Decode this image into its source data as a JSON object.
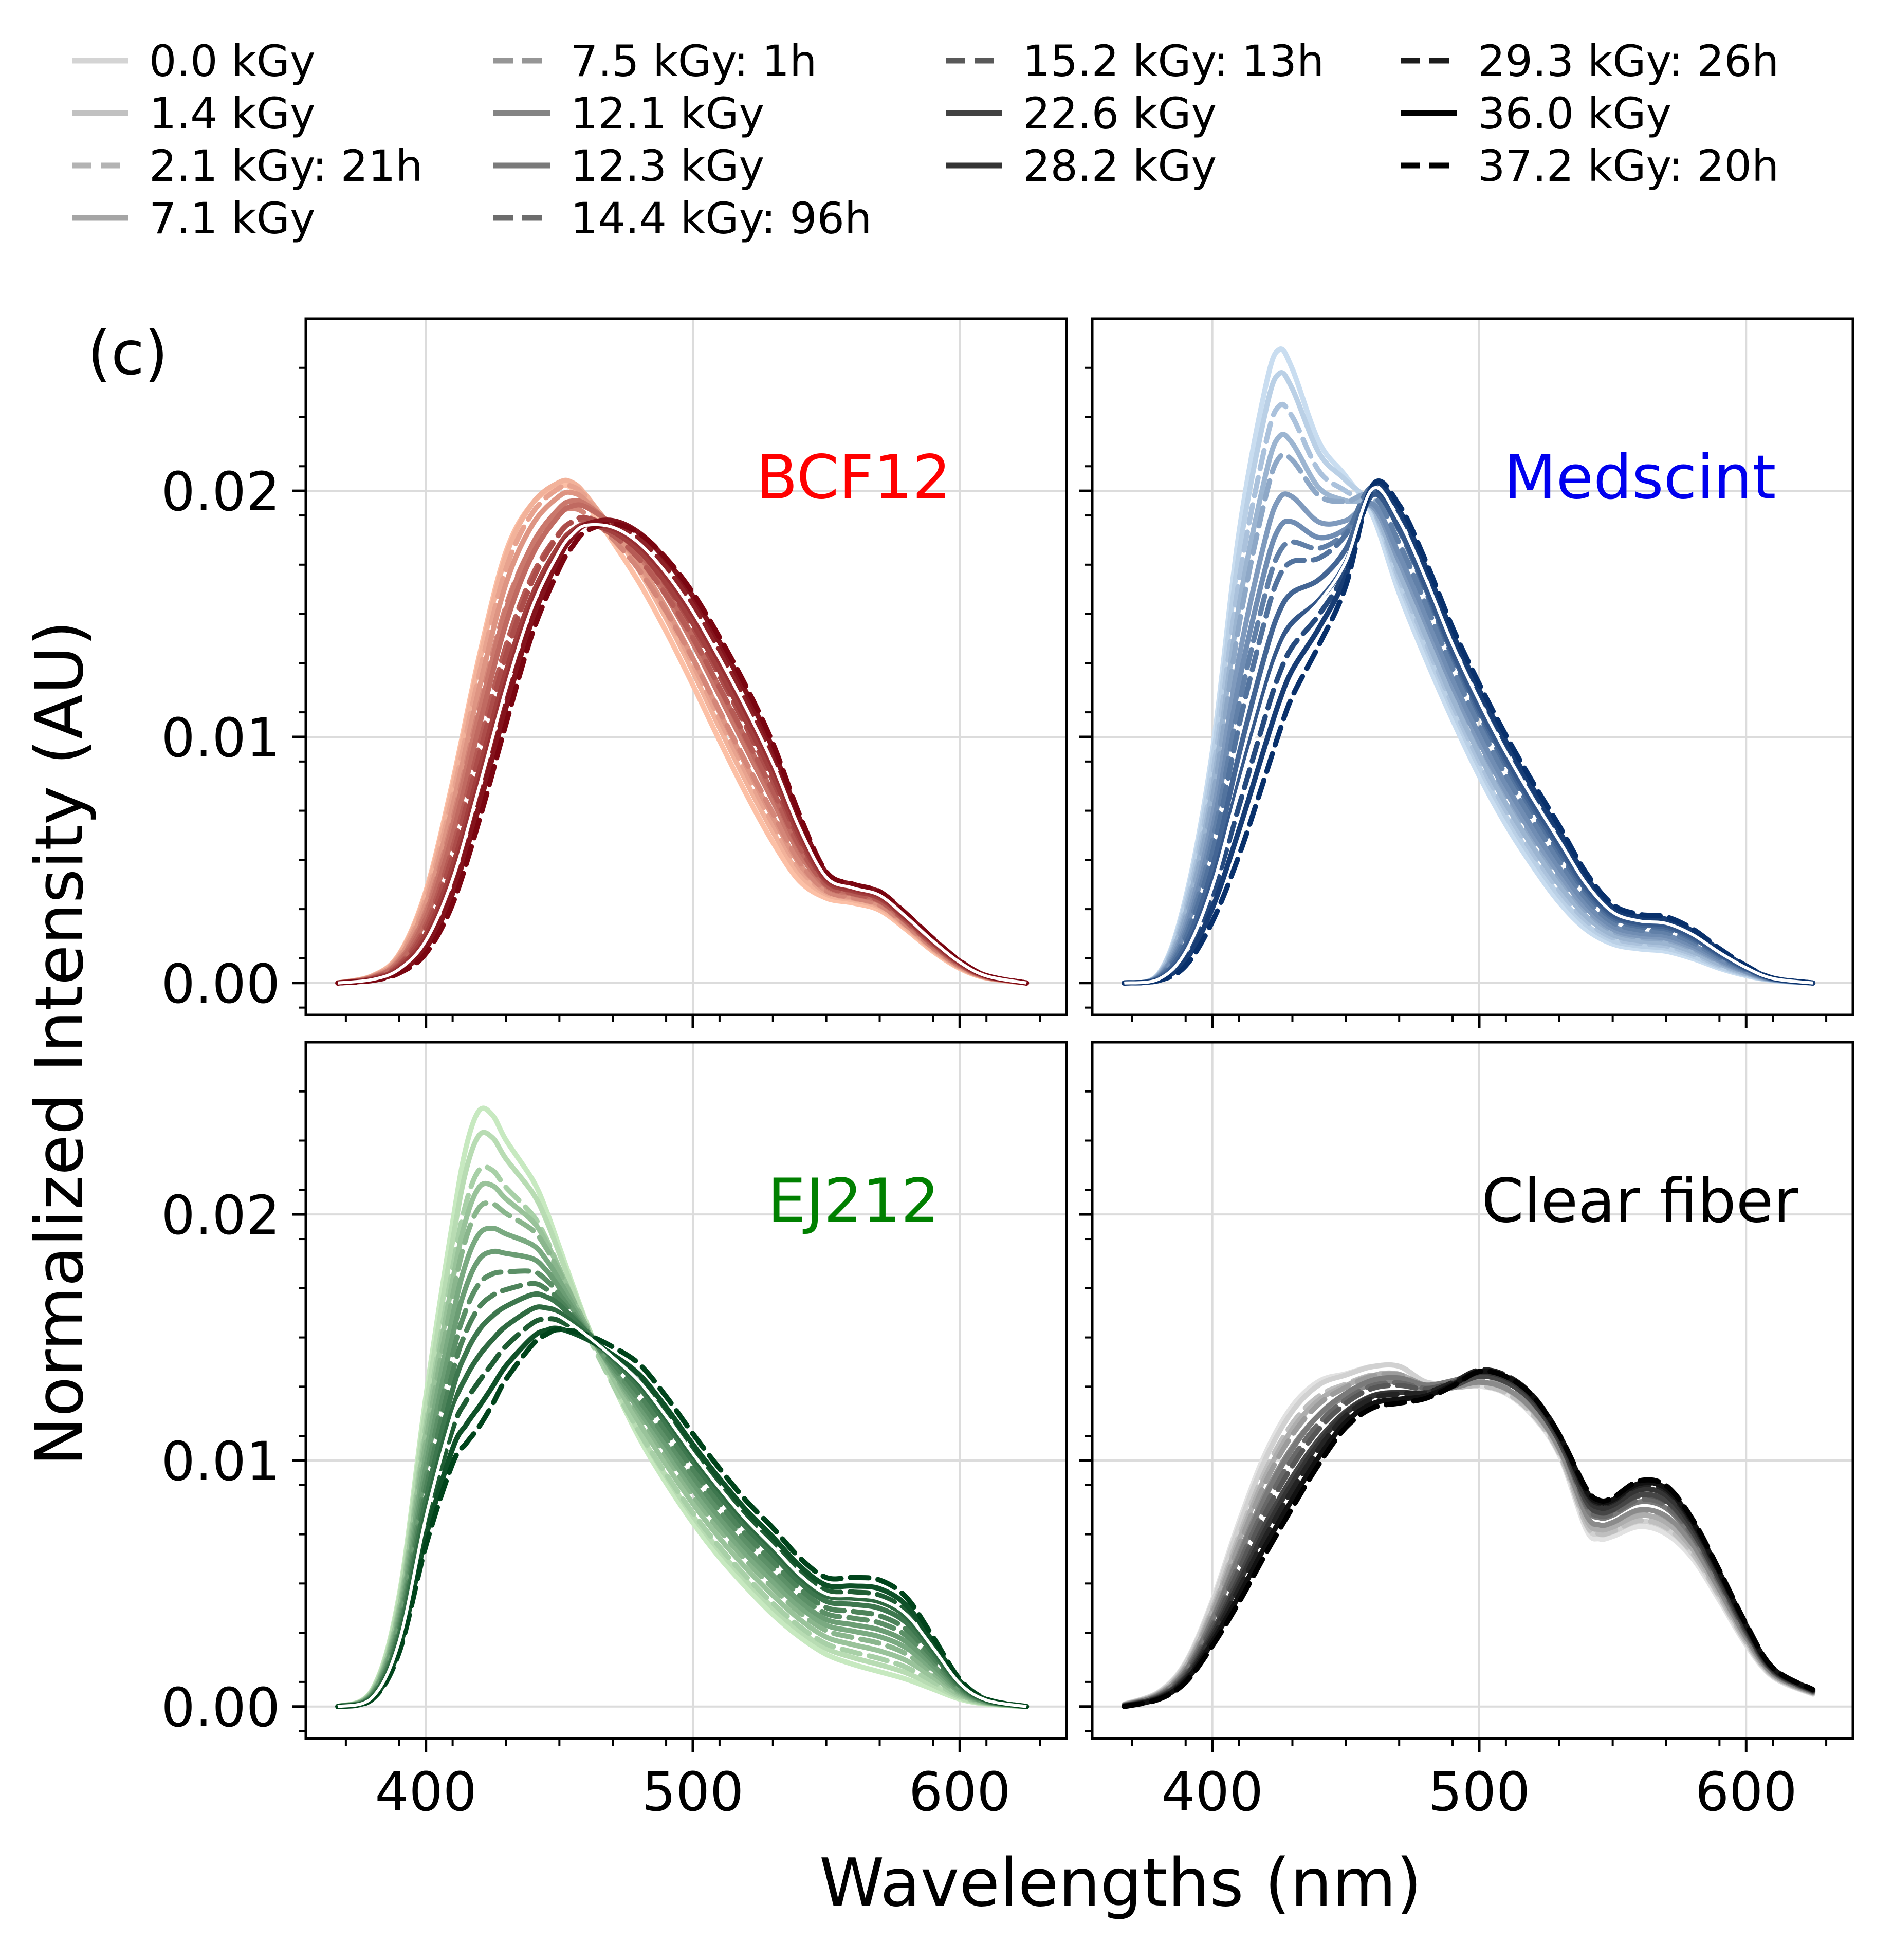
{
  "chart_data": {
    "type": "line",
    "panel_label": "(c)",
    "xlabel": "Wavelengths (nm)",
    "ylabel": "Normalized Intensity (AU)",
    "xlim": [
      355,
      640
    ],
    "ylim": [
      -0.0013,
      0.027
    ],
    "xticks": [
      400,
      500,
      600
    ],
    "xtick_labels": [
      "400",
      "500",
      "600"
    ],
    "yticks": [
      0.0,
      0.01,
      0.02
    ],
    "ytick_labels": [
      "0.00",
      "0.01",
      "0.02"
    ],
    "grid": true,
    "legend": {
      "position": "top",
      "columns": 4,
      "entries": [
        {
          "label": "0.0 kGy",
          "style": "solid",
          "shade": 0.1
        },
        {
          "label": "1.4 kGy",
          "style": "solid",
          "shade": 0.18
        },
        {
          "label": "2.1 kGy: 21h",
          "style": "dashed",
          "shade": 0.24
        },
        {
          "label": "7.1 kGy",
          "style": "solid",
          "shade": 0.3
        },
        {
          "label": "7.5 kGy: 1h",
          "style": "dashed",
          "shade": 0.36
        },
        {
          "label": "12.1 kGy",
          "style": "solid",
          "shade": 0.44
        },
        {
          "label": "12.3 kGy",
          "style": "solid",
          "shade": 0.48
        },
        {
          "label": "14.4 kGy: 96h",
          "style": "dashed",
          "shade": 0.54
        },
        {
          "label": "15.2 kGy: 13h",
          "style": "dashed",
          "shade": 0.62
        },
        {
          "label": "22.6 kGy",
          "style": "solid",
          "shade": 0.72
        },
        {
          "label": "28.2 kGy",
          "style": "solid",
          "shade": 0.78
        },
        {
          "label": "29.3 kGy: 26h",
          "style": "dashed",
          "shade": 0.88
        },
        {
          "label": "36.0 kGy",
          "style": "solid",
          "shade": 1.0
        },
        {
          "label": "37.2 kGy: 20h",
          "style": "dashed",
          "shade": 1.0
        }
      ]
    },
    "panels": [
      {
        "title": "BCF12",
        "title_color": "#ff0000",
        "cmap_light": "#fcc0a6",
        "cmap_dark": "#7a0510",
        "x": [
          367,
          380,
          390,
          400,
          410,
          420,
          430,
          440,
          450,
          455,
          460,
          470,
          480,
          490,
          500,
          510,
          520,
          530,
          540,
          550,
          560,
          570,
          580,
          590,
          600,
          610,
          625
        ],
        "series_first": [
          0.0,
          0.0003,
          0.0012,
          0.0038,
          0.0083,
          0.0135,
          0.0178,
          0.0198,
          0.0205,
          0.0204,
          0.0198,
          0.0182,
          0.0165,
          0.0145,
          0.0123,
          0.01,
          0.0078,
          0.0058,
          0.0042,
          0.0035,
          0.0033,
          0.003,
          0.0022,
          0.0013,
          0.0006,
          0.0002,
          0.0
        ],
        "series_last": [
          0.0,
          0.0001,
          0.0004,
          0.0012,
          0.0032,
          0.0066,
          0.0105,
          0.0142,
          0.0168,
          0.0177,
          0.0183,
          0.0186,
          0.0182,
          0.0172,
          0.0158,
          0.014,
          0.012,
          0.0097,
          0.0068,
          0.0045,
          0.004,
          0.0037,
          0.0028,
          0.0018,
          0.0009,
          0.0003,
          0.0
        ]
      },
      {
        "title": "Medscint",
        "title_color": "#0000ee",
        "cmap_light": "#c9ddf0",
        "cmap_dark": "#08306b",
        "x": [
          367,
          380,
          390,
          400,
          410,
          420,
          425,
          430,
          440,
          450,
          460,
          470,
          480,
          490,
          500,
          510,
          520,
          530,
          540,
          550,
          560,
          570,
          580,
          590,
          600,
          610,
          625
        ],
        "series_first": [
          0.0,
          0.0004,
          0.0035,
          0.0095,
          0.0185,
          0.0245,
          0.026,
          0.0252,
          0.0222,
          0.0208,
          0.0192,
          0.016,
          0.0133,
          0.0108,
          0.0085,
          0.0065,
          0.0048,
          0.0033,
          0.0022,
          0.0016,
          0.0014,
          0.0013,
          0.001,
          0.0006,
          0.0003,
          0.0001,
          0.0
        ],
        "series_last": [
          0.0,
          0.0001,
          0.0007,
          0.0025,
          0.0052,
          0.0085,
          0.0102,
          0.0117,
          0.0138,
          0.0162,
          0.0203,
          0.0195,
          0.0172,
          0.0145,
          0.0122,
          0.0101,
          0.0082,
          0.0064,
          0.0045,
          0.0032,
          0.0028,
          0.0027,
          0.0022,
          0.0014,
          0.0007,
          0.0002,
          0.0
        ]
      },
      {
        "title": "EJ212",
        "title_color": "#008000",
        "cmap_light": "#c7e9c0",
        "cmap_dark": "#00441b",
        "x": [
          367,
          380,
          390,
          400,
          410,
          415,
          420,
          425,
          430,
          440,
          445,
          450,
          460,
          470,
          480,
          490,
          500,
          510,
          520,
          530,
          540,
          550,
          560,
          570,
          580,
          590,
          600,
          610,
          625
        ],
        "series_first": [
          0.0,
          0.0007,
          0.0045,
          0.0125,
          0.0195,
          0.0225,
          0.024,
          0.0238,
          0.0228,
          0.0212,
          0.02,
          0.0185,
          0.0155,
          0.013,
          0.0108,
          0.009,
          0.0074,
          0.006,
          0.0048,
          0.0037,
          0.0028,
          0.0021,
          0.0017,
          0.0014,
          0.0011,
          0.0007,
          0.0003,
          0.0001,
          0.0
        ],
        "series_last": [
          0.0,
          0.0003,
          0.0022,
          0.0065,
          0.0098,
          0.0106,
          0.0113,
          0.0122,
          0.0132,
          0.0146,
          0.015,
          0.0152,
          0.015,
          0.0145,
          0.0138,
          0.0125,
          0.011,
          0.0096,
          0.0083,
          0.0072,
          0.006,
          0.0052,
          0.0052,
          0.0051,
          0.0044,
          0.0028,
          0.0011,
          0.0003,
          0.0
        ]
      },
      {
        "title": "Clear fiber",
        "title_color": "#000000",
        "cmap_light": "#e2e2e2",
        "cmap_dark": "#000000",
        "x": [
          367,
          380,
          390,
          400,
          410,
          420,
          430,
          440,
          450,
          460,
          470,
          480,
          490,
          500,
          510,
          520,
          530,
          540,
          545,
          550,
          560,
          570,
          580,
          590,
          600,
          610,
          625
        ],
        "series_first": [
          0.0001,
          0.0006,
          0.0018,
          0.0043,
          0.0075,
          0.0103,
          0.0122,
          0.0132,
          0.0135,
          0.0138,
          0.0138,
          0.0131,
          0.013,
          0.013,
          0.0127,
          0.0118,
          0.0102,
          0.0072,
          0.0068,
          0.0069,
          0.0073,
          0.007,
          0.006,
          0.0043,
          0.0025,
          0.0012,
          0.0005
        ],
        "series_last": [
          0.0,
          0.0003,
          0.001,
          0.0025,
          0.0043,
          0.0063,
          0.0082,
          0.01,
          0.0115,
          0.0123,
          0.0125,
          0.0127,
          0.0132,
          0.0138,
          0.0136,
          0.0128,
          0.0112,
          0.009,
          0.0085,
          0.0086,
          0.0093,
          0.0091,
          0.0077,
          0.0056,
          0.0034,
          0.0016,
          0.0007
        ]
      }
    ]
  }
}
